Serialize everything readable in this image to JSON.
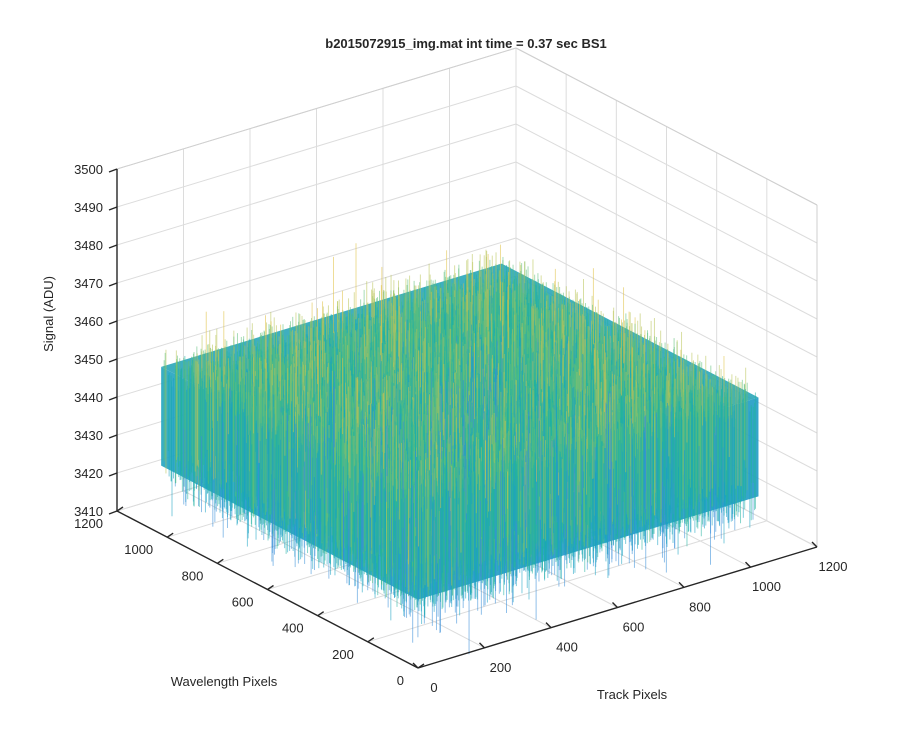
{
  "chart_data": {
    "type": "surface",
    "title": "b2015072915_img.mat int time = 0.37 sec   BS1",
    "xlabel": "Track Pixels",
    "ylabel": "Wavelength Pixels",
    "zlabel": "Signal (ADU)",
    "xlim": [
      0,
      1200
    ],
    "ylim": [
      0,
      1200
    ],
    "zlim": [
      3410,
      3500
    ],
    "x_ticks": [
      "0",
      "200",
      "400",
      "600",
      "800",
      "1000",
      "1200"
    ],
    "y_ticks": [
      "0",
      "200",
      "400",
      "600",
      "800",
      "1000",
      "1200"
    ],
    "z_ticks": [
      "3410",
      "3420",
      "3430",
      "3440",
      "3450",
      "3460",
      "3470",
      "3480",
      "3490",
      "3500"
    ],
    "data_extent": {
      "x": [
        0,
        1024
      ],
      "y": [
        0,
        1024
      ]
    },
    "signal_mean": 3440,
    "signal_typical_range": [
      3425,
      3460
    ],
    "colormap": [
      "#3a8fd9",
      "#1aa3c2",
      "#22b3a0",
      "#5fbf7a",
      "#b9c45a",
      "#e0c247"
    ],
    "grid": true,
    "view": "3d"
  }
}
